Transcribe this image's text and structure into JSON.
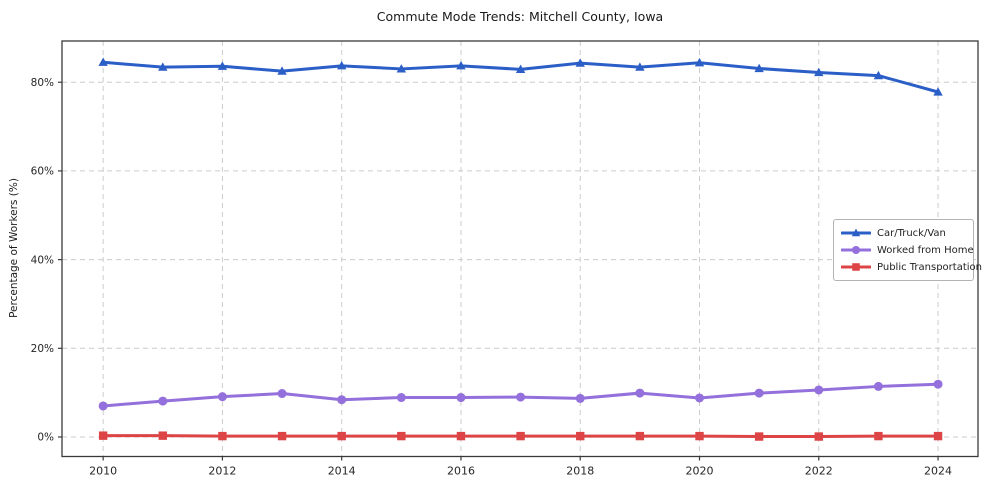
{
  "title": "Commute Mode Trends: Mitchell County, Iowa",
  "colors": {
    "car_truck_van": "#2b5fc7",
    "worked_from_home": "#9370db",
    "public_transportation": "#dc4446",
    "grid": "#cccccc",
    "spine": "#3a3a3a",
    "tick_text": "#262626",
    "background": "#ffffff"
  },
  "chart_data": {
    "type": "line",
    "title": "Commute Mode Trends: Mitchell County, Iowa",
    "xlabel": "",
    "ylabel": "Percentage of Workers (%)",
    "x": [
      2010,
      2011,
      2012,
      2013,
      2014,
      2015,
      2016,
      2017,
      2018,
      2019,
      2020,
      2021,
      2022,
      2023,
      2024
    ],
    "series": [
      {
        "name": "Car/Truck/Van",
        "color": "#2b5fc7",
        "marker": "triangle-up",
        "values": [
          84.5,
          83.4,
          83.6,
          82.5,
          83.7,
          83.0,
          83.7,
          82.9,
          84.3,
          83.4,
          84.4,
          83.1,
          82.2,
          81.5,
          77.8
        ]
      },
      {
        "name": "Worked from Home",
        "color": "#9370db",
        "marker": "circle",
        "values": [
          7.0,
          8.1,
          9.1,
          9.8,
          8.4,
          8.9,
          8.9,
          9.0,
          8.7,
          9.9,
          8.8,
          9.9,
          10.6,
          11.4,
          11.9
        ]
      },
      {
        "name": "Public Transportation",
        "color": "#dc4446",
        "marker": "square",
        "values": [
          0.3,
          0.3,
          0.2,
          0.2,
          0.2,
          0.2,
          0.2,
          0.2,
          0.2,
          0.2,
          0.2,
          0.1,
          0.1,
          0.2,
          0.2
        ]
      }
    ],
    "xlim": [
      2009.31,
      2024.67
    ],
    "ylim": [
      -4.4,
      89.3
    ],
    "x_ticks": [
      2010,
      2012,
      2014,
      2016,
      2018,
      2020,
      2022,
      2024
    ],
    "x_tick_labels": [
      "2010",
      "2012",
      "2014",
      "2016",
      "2018",
      "2020",
      "2022",
      "2024"
    ],
    "y_ticks": [
      0,
      20,
      40,
      60,
      80
    ],
    "y_tick_labels": [
      "0%",
      "20%",
      "40%",
      "60%",
      "80%"
    ],
    "grid": true,
    "grid_style": "dashed",
    "legend_position": "center-right"
  }
}
